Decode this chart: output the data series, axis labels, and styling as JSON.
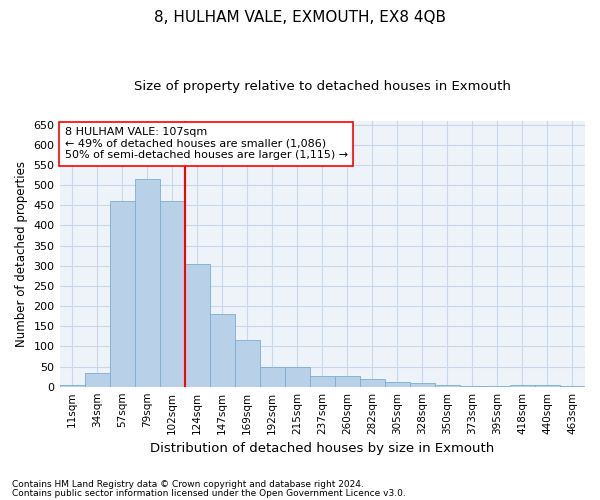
{
  "title": "8, HULHAM VALE, EXMOUTH, EX8 4QB",
  "subtitle": "Size of property relative to detached houses in Exmouth",
  "xlabel": "Distribution of detached houses by size in Exmouth",
  "ylabel": "Number of detached properties",
  "categories": [
    "11sqm",
    "34sqm",
    "57sqm",
    "79sqm",
    "102sqm",
    "124sqm",
    "147sqm",
    "169sqm",
    "192sqm",
    "215sqm",
    "237sqm",
    "260sqm",
    "282sqm",
    "305sqm",
    "328sqm",
    "350sqm",
    "373sqm",
    "395sqm",
    "418sqm",
    "440sqm",
    "463sqm"
  ],
  "values": [
    5,
    35,
    460,
    515,
    460,
    305,
    180,
    115,
    50,
    50,
    27,
    27,
    18,
    12,
    8,
    5,
    2,
    2,
    5,
    5,
    2
  ],
  "bar_color": "#b8d0e8",
  "bar_edge_color": "#7aaed0",
  "grid_color": "#c8d8ea",
  "background_color": "#eef3fa",
  "vline_color": "red",
  "vline_x_index": 4,
  "ylim": [
    0,
    660
  ],
  "yticks": [
    0,
    50,
    100,
    150,
    200,
    250,
    300,
    350,
    400,
    450,
    500,
    550,
    600,
    650
  ],
  "annotation_title": "8 HULHAM VALE: 107sqm",
  "annotation_line1": "← 49% of detached houses are smaller (1,086)",
  "annotation_line2": "50% of semi-detached houses are larger (1,115) →",
  "annotation_box_color": "white",
  "annotation_box_edge": "red",
  "footnote1": "Contains HM Land Registry data © Crown copyright and database right 2024.",
  "footnote2": "Contains public sector information licensed under the Open Government Licence v3.0."
}
